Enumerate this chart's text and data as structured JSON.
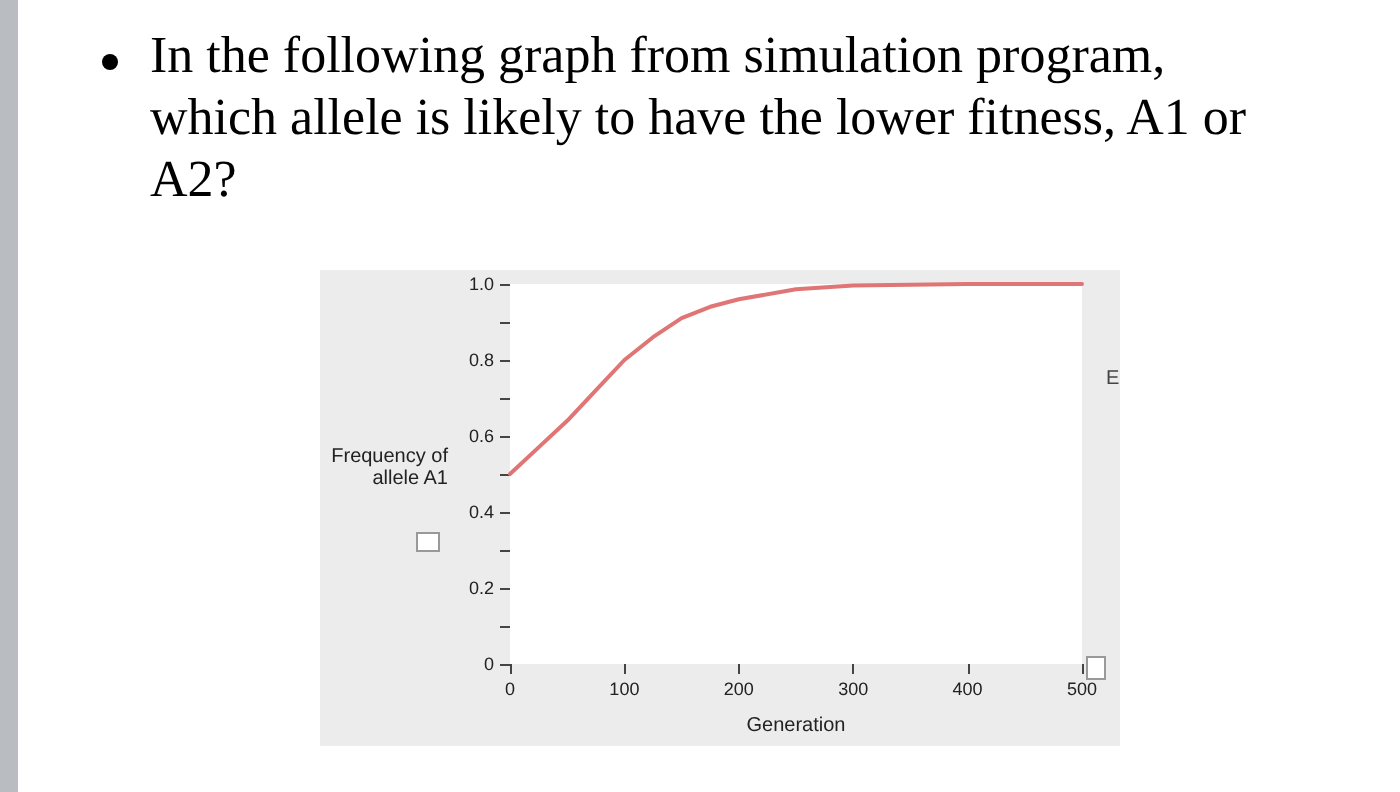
{
  "chart_data": {
    "type": "line",
    "title": "In the following graph from simulation program, which allele is likely to have the lower fitness, A1 or A2?",
    "xlabel": "Generation",
    "ylabel": "Frequency of allele A1",
    "annotations": [
      "E"
    ],
    "x": [
      0,
      25,
      50,
      75,
      100,
      125,
      150,
      175,
      200,
      250,
      300,
      400,
      500
    ],
    "series": [
      {
        "color": "#e07575",
        "values": [
          0.5,
          0.57,
          0.64,
          0.72,
          0.8,
          0.86,
          0.91,
          0.94,
          0.96,
          0.986,
          0.996,
          1.0,
          1.0
        ]
      }
    ],
    "xlim": [
      0,
      500
    ],
    "xticks": [
      0,
      100,
      200,
      300,
      400,
      500
    ],
    "ylim": [
      0,
      1
    ],
    "yticks": [
      0,
      {
        "value": 0.1,
        "label": null
      },
      0.2,
      {
        "value": 0.3,
        "label": null
      },
      0.4,
      {
        "value": 0.5,
        "label": null
      },
      0.6,
      {
        "value": 0.7,
        "label": null
      },
      0.8,
      {
        "value": 0.9,
        "label": null
      },
      {
        "value": 1,
        "label": "1.0"
      }
    ],
    "grid": false,
    "marker": "none",
    "line_style": "solid"
  }
}
